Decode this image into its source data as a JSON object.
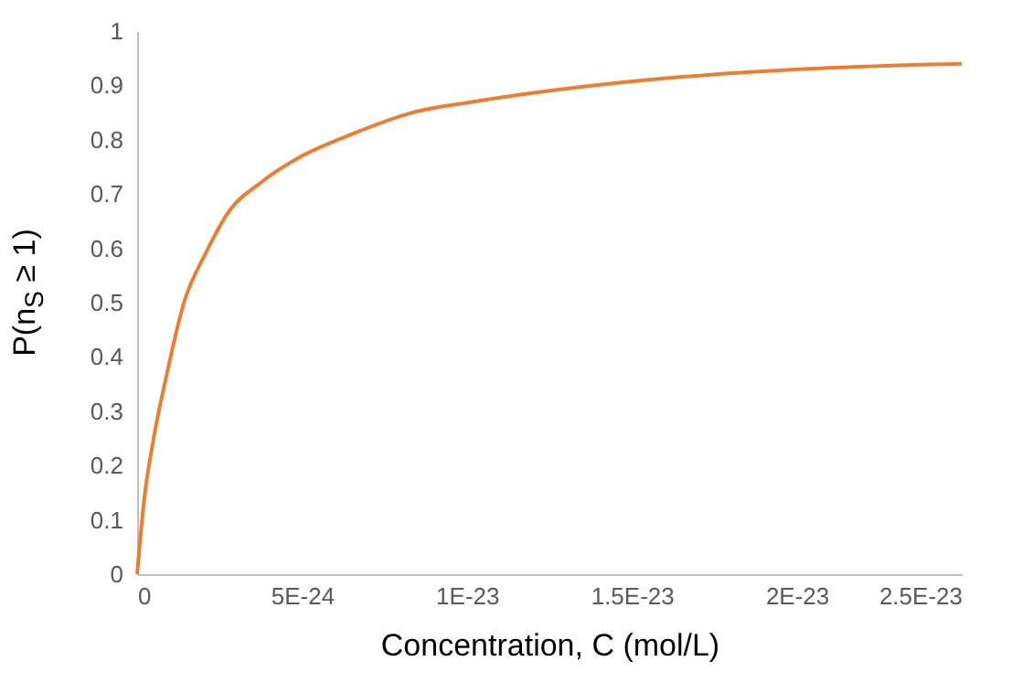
{
  "chart_data": {
    "type": "line",
    "xlabel": "Concentration, C (mol/L)",
    "ylabel": "P(n$_{S}$ ≥ 1)",
    "x": [
      0,
      2.2e-25,
      5e-25,
      8.7e-25,
      1.42e-24,
      2.07e-24,
      2.81e-24,
      3.73e-24,
      5e-24,
      6.5e-24,
      8.35e-24,
      1.02e-23,
      1.46e-23,
      2.02e-23,
      2.5e-23
    ],
    "series": [
      {
        "color": "#ed7d31",
        "values": [
          0,
          0.14,
          0.25,
          0.36,
          0.5,
          0.59,
          0.67,
          0.72,
          0.77,
          0.81,
          0.85,
          0.87,
          0.905,
          0.93,
          0.94
        ]
      }
    ],
    "xlim": [
      0,
      2.5e-23
    ],
    "xticks": [
      0,
      {
        "value": 5e-24,
        "label": "5E-24"
      },
      {
        "value": 1e-23,
        "label": "1E-23"
      },
      {
        "value": 1.5e-23,
        "label": "1.5E-23"
      },
      {
        "value": 2e-23,
        "label": "2E-23"
      },
      {
        "value": 2.5e-23,
        "label": "2.5E-23"
      }
    ],
    "ylim": [
      0,
      1
    ],
    "yticks": [
      0,
      0.1,
      0.2,
      0.3,
      0.4,
      0.5,
      0.6,
      0.7,
      0.8,
      0.9,
      1
    ],
    "grid": false,
    "marker": "none",
    "line_style": "solid"
  }
}
